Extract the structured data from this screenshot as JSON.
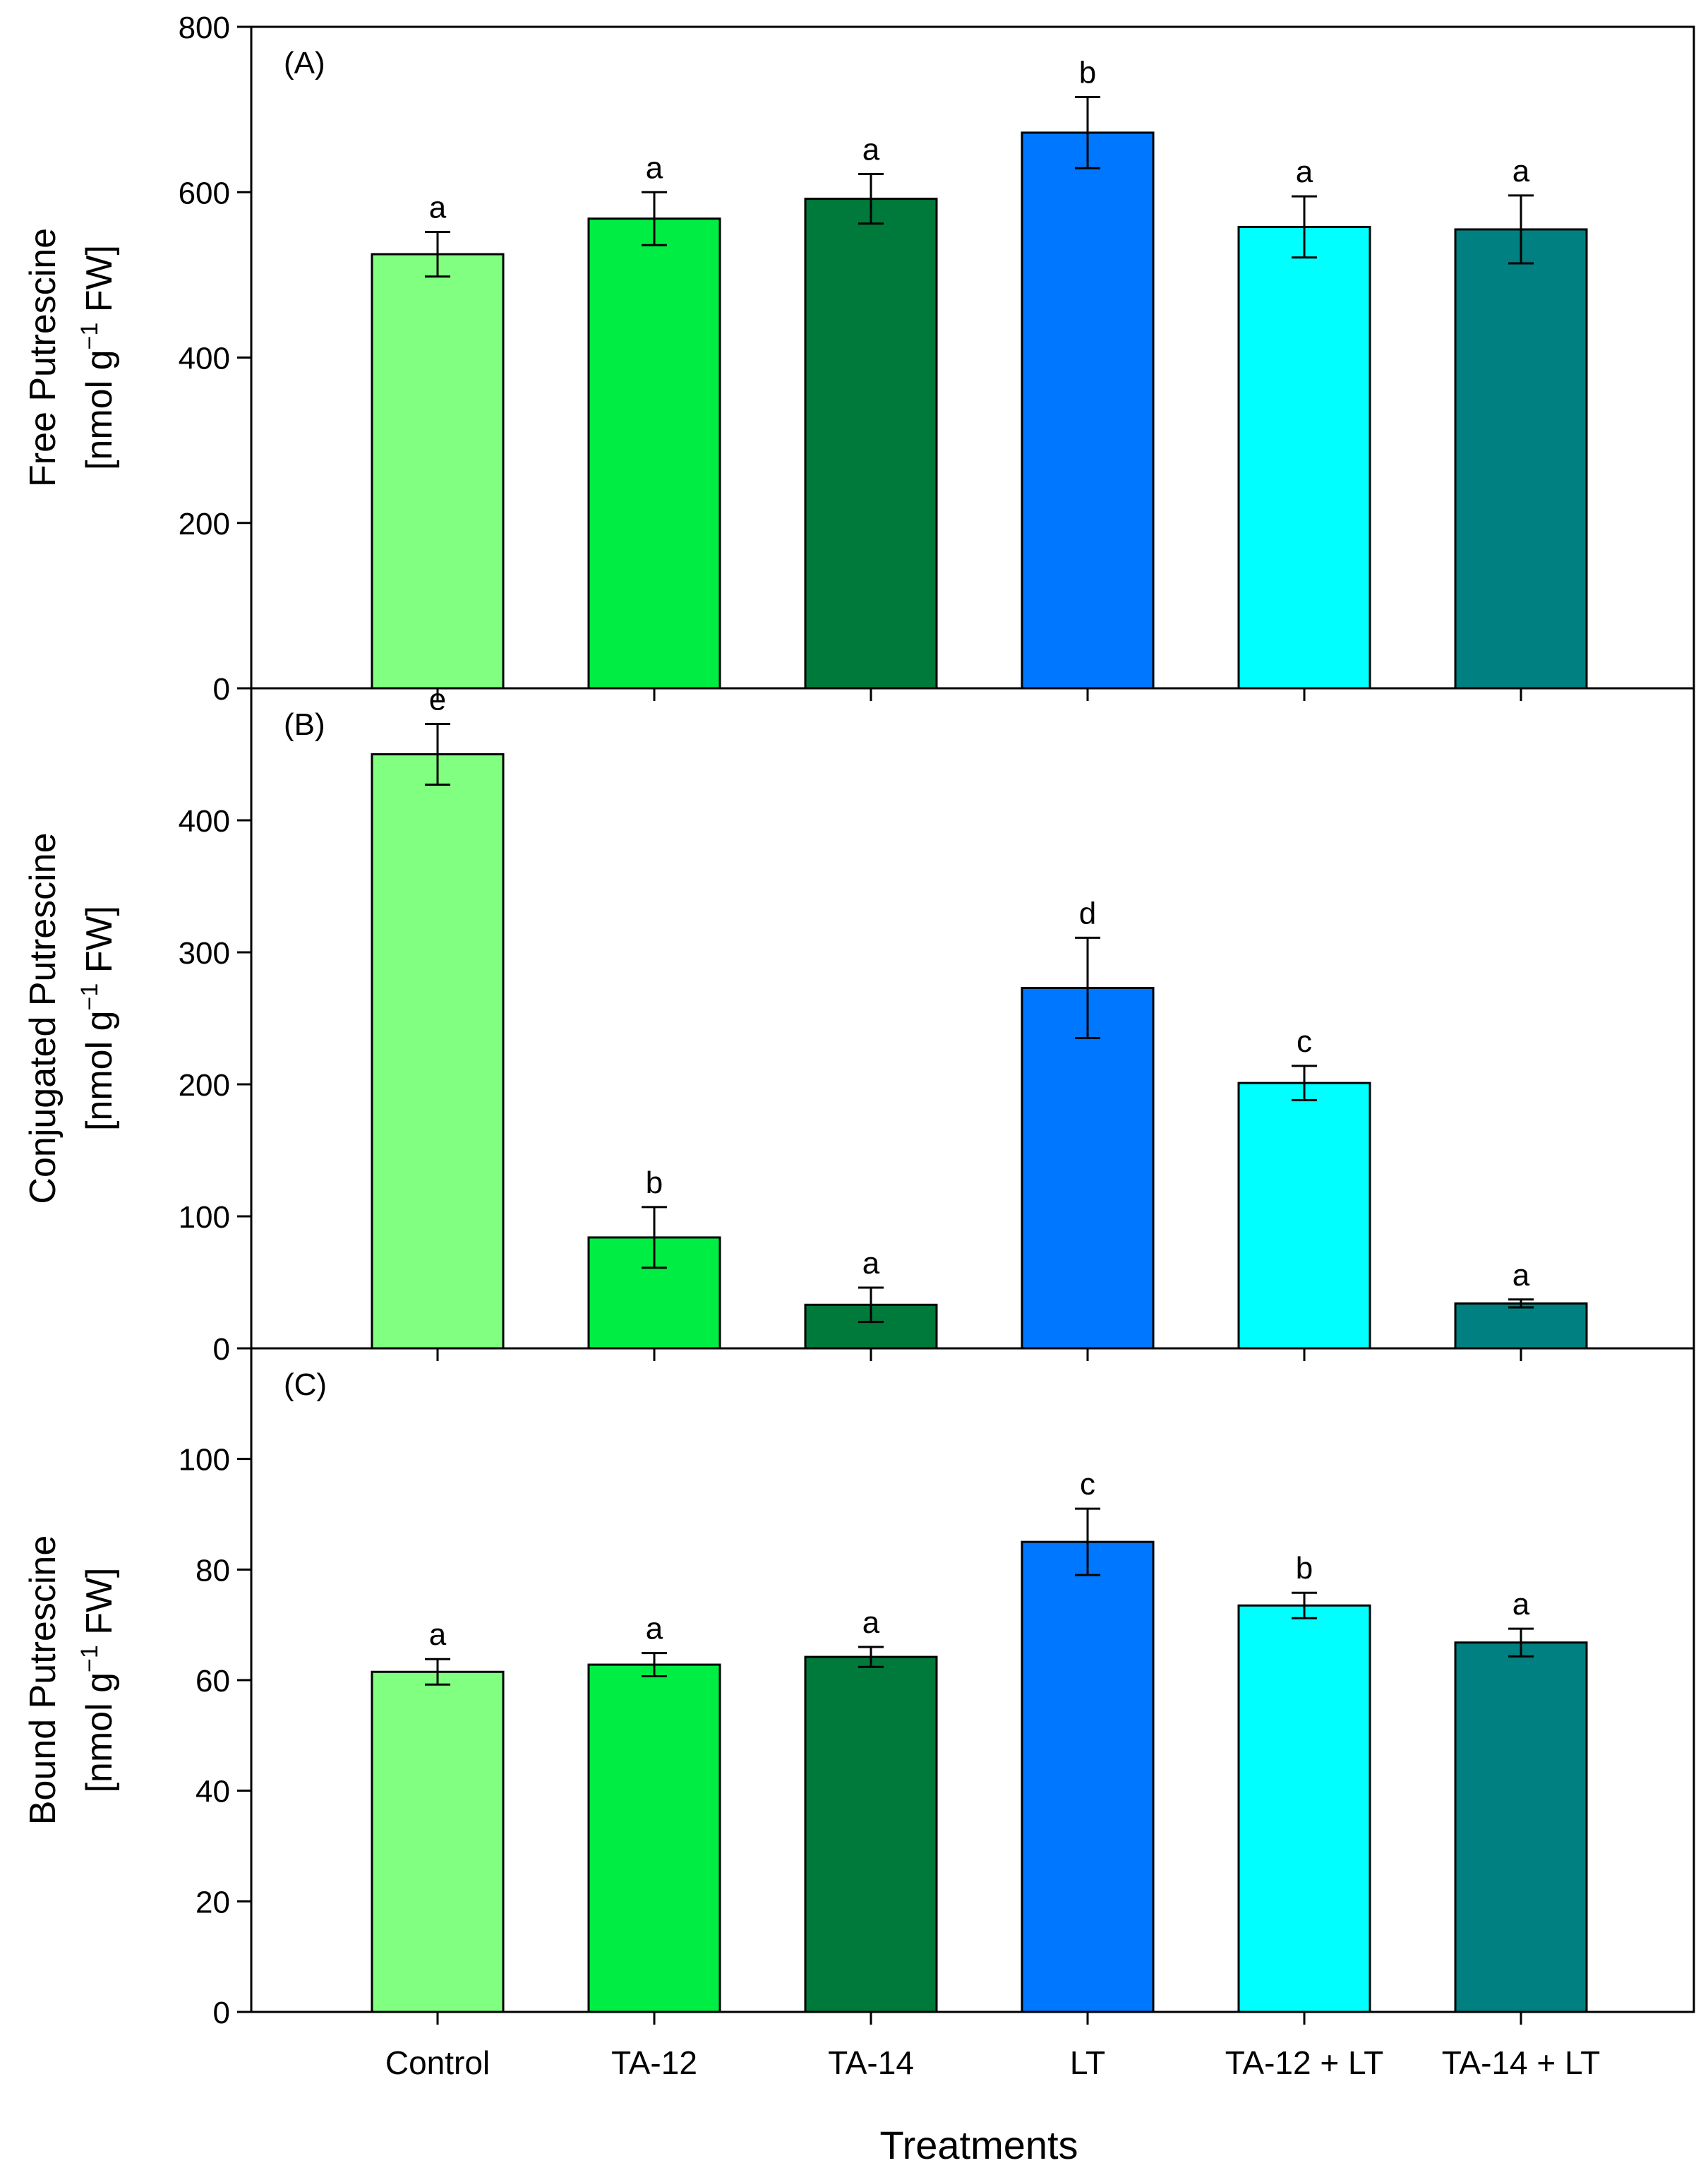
{
  "chart_data": {
    "type": "bar",
    "xlabel": "Treatments",
    "categories": [
      "Control",
      "TA-12",
      "TA-14",
      "LT",
      "TA-12 + LT",
      "TA-14 + LT"
    ],
    "colors": [
      "#80ff80",
      "#00ee44",
      "#007a3a",
      "#0077ff",
      "#00ffff",
      "#008080"
    ],
    "panels": [
      {
        "tag": "(A)",
        "ylabel_line1": "Free Putrescine",
        "ylabel_line2_pre": "[nmol g",
        "ylabel_sup": "−1",
        "ylabel_line2_post": " FW]",
        "ylim": [
          0,
          800
        ],
        "yticks": [
          0,
          200,
          400,
          600,
          800
        ],
        "values": [
          525,
          568,
          592,
          672,
          558,
          555
        ],
        "errors": [
          27,
          32,
          30,
          43,
          37,
          41
        ],
        "letters": [
          "a",
          "a",
          "a",
          "b",
          "a",
          "a"
        ]
      },
      {
        "tag": "(B)",
        "ylabel_line1": "Conjugated Putrescine",
        "ylabel_line2_pre": "[nmol g",
        "ylabel_sup": "−1",
        "ylabel_line2_post": " FW]",
        "ylim": [
          0,
          500
        ],
        "yticks": [
          0,
          100,
          200,
          300,
          400
        ],
        "values": [
          450,
          84,
          33,
          273,
          201,
          34
        ],
        "errors": [
          23,
          23,
          13,
          38,
          13,
          3
        ],
        "letters": [
          "e",
          "b",
          "a",
          "d",
          "c",
          "a"
        ]
      },
      {
        "tag": "(C)",
        "ylabel_line1": "Bound Putrescine",
        "ylabel_line2_pre": "[nmol g",
        "ylabel_sup": "−1",
        "ylabel_line2_post": " FW]",
        "ylim": [
          0,
          120
        ],
        "yticks": [
          0,
          20,
          40,
          60,
          80,
          100
        ],
        "values": [
          61.5,
          62.8,
          64.2,
          85,
          73.5,
          66.8
        ],
        "errors": [
          2.3,
          2.1,
          1.8,
          6.0,
          2.3,
          2.5
        ],
        "letters": [
          "a",
          "a",
          "a",
          "c",
          "b",
          "a"
        ]
      }
    ]
  }
}
